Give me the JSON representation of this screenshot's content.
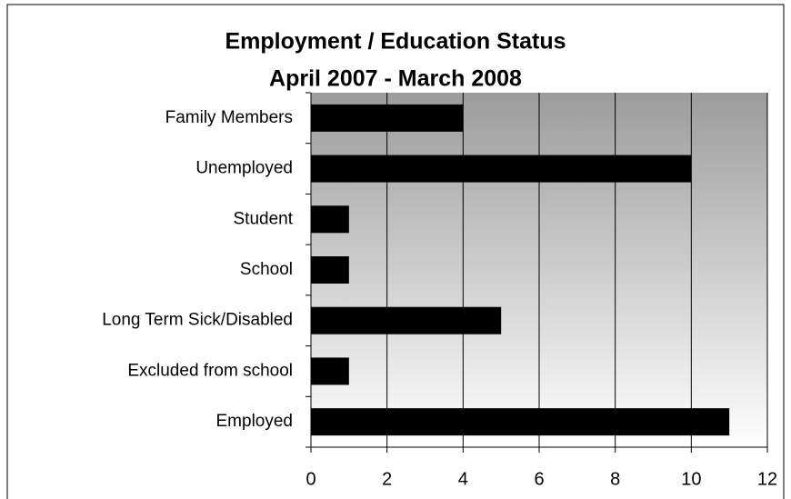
{
  "chart_data": {
    "type": "hbar",
    "title": "Employment / Education Status",
    "subtitle": "April 2007 - March 2008",
    "categories": [
      "Family Members",
      "Unemployed",
      "Student",
      "School",
      "Long Term Sick/Disabled",
      "Excluded from school",
      "Employed"
    ],
    "values": [
      4,
      10,
      1,
      1,
      5,
      1,
      11
    ],
    "color": "#000000",
    "xlim": [
      0,
      12
    ],
    "xticks": [
      0,
      2,
      4,
      6,
      8,
      10,
      12
    ],
    "grid": true
  }
}
